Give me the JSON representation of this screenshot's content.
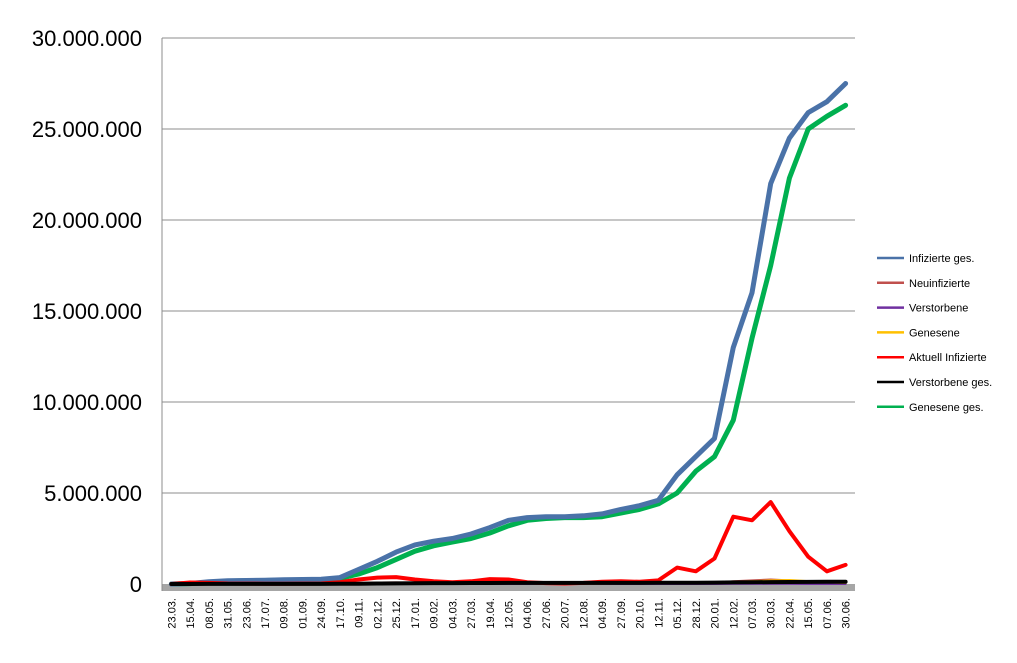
{
  "chart_data": {
    "type": "line",
    "title": "",
    "xlabel": "",
    "ylabel": "",
    "ylim": [
      0,
      30000000
    ],
    "y_ticks": [
      "0",
      "5.000.000",
      "10.000.000",
      "15.000.000",
      "20.000.000",
      "25.000.000",
      "30.000.000"
    ],
    "y_tick_values": [
      0,
      5000000,
      10000000,
      15000000,
      20000000,
      25000000,
      30000000
    ],
    "x_tick_labels": [
      "23.03.",
      "15.04.",
      "08.05.",
      "31.05.",
      "23.06.",
      "17.07.",
      "09.08.",
      "01.09.",
      "24.09.",
      "17.10.",
      "09.11.",
      "02.12.",
      "25.12.",
      "17.01.",
      "09.02.",
      "04.03.",
      "27.03.",
      "19.04.",
      "12.05.",
      "04.06.",
      "27.06.",
      "20.07.",
      "12.08.",
      "04.09.",
      "27.09.",
      "20.10.",
      "12.11.",
      "05.12.",
      "28.12.",
      "20.01.",
      "12.02.",
      "07.03.",
      "30.03.",
      "22.04.",
      "15.05.",
      "07.06.",
      "30.06."
    ],
    "grid": true,
    "legend_position": "right",
    "series": [
      {
        "name": "Infizierte ges.",
        "color": "#4A72A8",
        "width": 5,
        "values": [
          0,
          30000,
          120000,
          180000,
          195000,
          210000,
          230000,
          245000,
          260000,
          350000,
          800000,
          1250000,
          1750000,
          2150000,
          2350000,
          2500000,
          2750000,
          3100000,
          3500000,
          3650000,
          3700000,
          3700000,
          3750000,
          3850000,
          4100000,
          4300000,
          4600000,
          6000000,
          7000000,
          8000000,
          13000000,
          16000000,
          22000000,
          24500000,
          25900000,
          26500000,
          27500000
        ]
      },
      {
        "name": "Neuinfizierte",
        "color": "#C0504D",
        "width": 2,
        "values": [
          0,
          20000,
          10000,
          5000,
          5000,
          5000,
          5000,
          8000,
          10000,
          30000,
          60000,
          80000,
          90000,
          60000,
          30000,
          25000,
          40000,
          60000,
          50000,
          20000,
          10000,
          8000,
          15000,
          30000,
          40000,
          35000,
          40000,
          60000,
          50000,
          60000,
          150000,
          200000,
          250000,
          200000,
          120000,
          60000,
          100000
        ]
      },
      {
        "name": "Verstorbene",
        "color": "#7030A0",
        "width": 2,
        "values": [
          0,
          1000,
          500,
          200,
          100,
          100,
          100,
          100,
          200,
          500,
          1500,
          2000,
          2500,
          2000,
          1500,
          1000,
          1000,
          1500,
          1200,
          500,
          300,
          200,
          300,
          500,
          800,
          1000,
          1500,
          2000,
          2000,
          2500,
          3000,
          3500,
          4000,
          3500,
          2500,
          1500,
          1000
        ]
      },
      {
        "name": "Genesene",
        "color": "#FFC000",
        "width": 2,
        "values": [
          0,
          10000,
          15000,
          8000,
          5000,
          4000,
          4000,
          5000,
          6000,
          15000,
          40000,
          60000,
          80000,
          70000,
          40000,
          25000,
          30000,
          45000,
          50000,
          30000,
          15000,
          8000,
          10000,
          20000,
          30000,
          35000,
          35000,
          50000,
          50000,
          55000,
          120000,
          150000,
          200000,
          220000,
          160000,
          90000,
          60000
        ]
      },
      {
        "name": "Aktuell Infizierte",
        "color": "#FF0000",
        "width": 4,
        "values": [
          0,
          80000,
          60000,
          30000,
          20000,
          15000,
          15000,
          20000,
          25000,
          100000,
          250000,
          350000,
          380000,
          250000,
          150000,
          100000,
          150000,
          270000,
          250000,
          100000,
          50000,
          30000,
          60000,
          120000,
          150000,
          120000,
          200000,
          900000,
          700000,
          1400000,
          3700000,
          3500000,
          4500000,
          2900000,
          1500000,
          700000,
          1050000
        ]
      },
      {
        "name": "Verstorbene ges.",
        "color": "#000000",
        "width": 4,
        "values": [
          0,
          2000,
          5000,
          6000,
          6500,
          7000,
          7200,
          7500,
          8000,
          10000,
          15000,
          25000,
          35000,
          45000,
          50000,
          52000,
          54000,
          57000,
          59000,
          60000,
          60000,
          60000,
          60000,
          61000,
          62000,
          63000,
          64000,
          68000,
          72000,
          78000,
          88000,
          95000,
          105000,
          112000,
          118000,
          120000,
          122000
        ]
      },
      {
        "name": "Genesene ges.",
        "color": "#00B050",
        "width": 5,
        "values": [
          0,
          20000,
          100000,
          160000,
          180000,
          195000,
          210000,
          225000,
          240000,
          300000,
          550000,
          900000,
          1350000,
          1800000,
          2100000,
          2300000,
          2500000,
          2800000,
          3200000,
          3500000,
          3600000,
          3650000,
          3650000,
          3700000,
          3900000,
          4100000,
          4400000,
          5000000,
          6200000,
          7000000,
          9000000,
          13500000,
          17500000,
          22300000,
          25000000,
          25700000,
          26300000
        ]
      }
    ]
  }
}
